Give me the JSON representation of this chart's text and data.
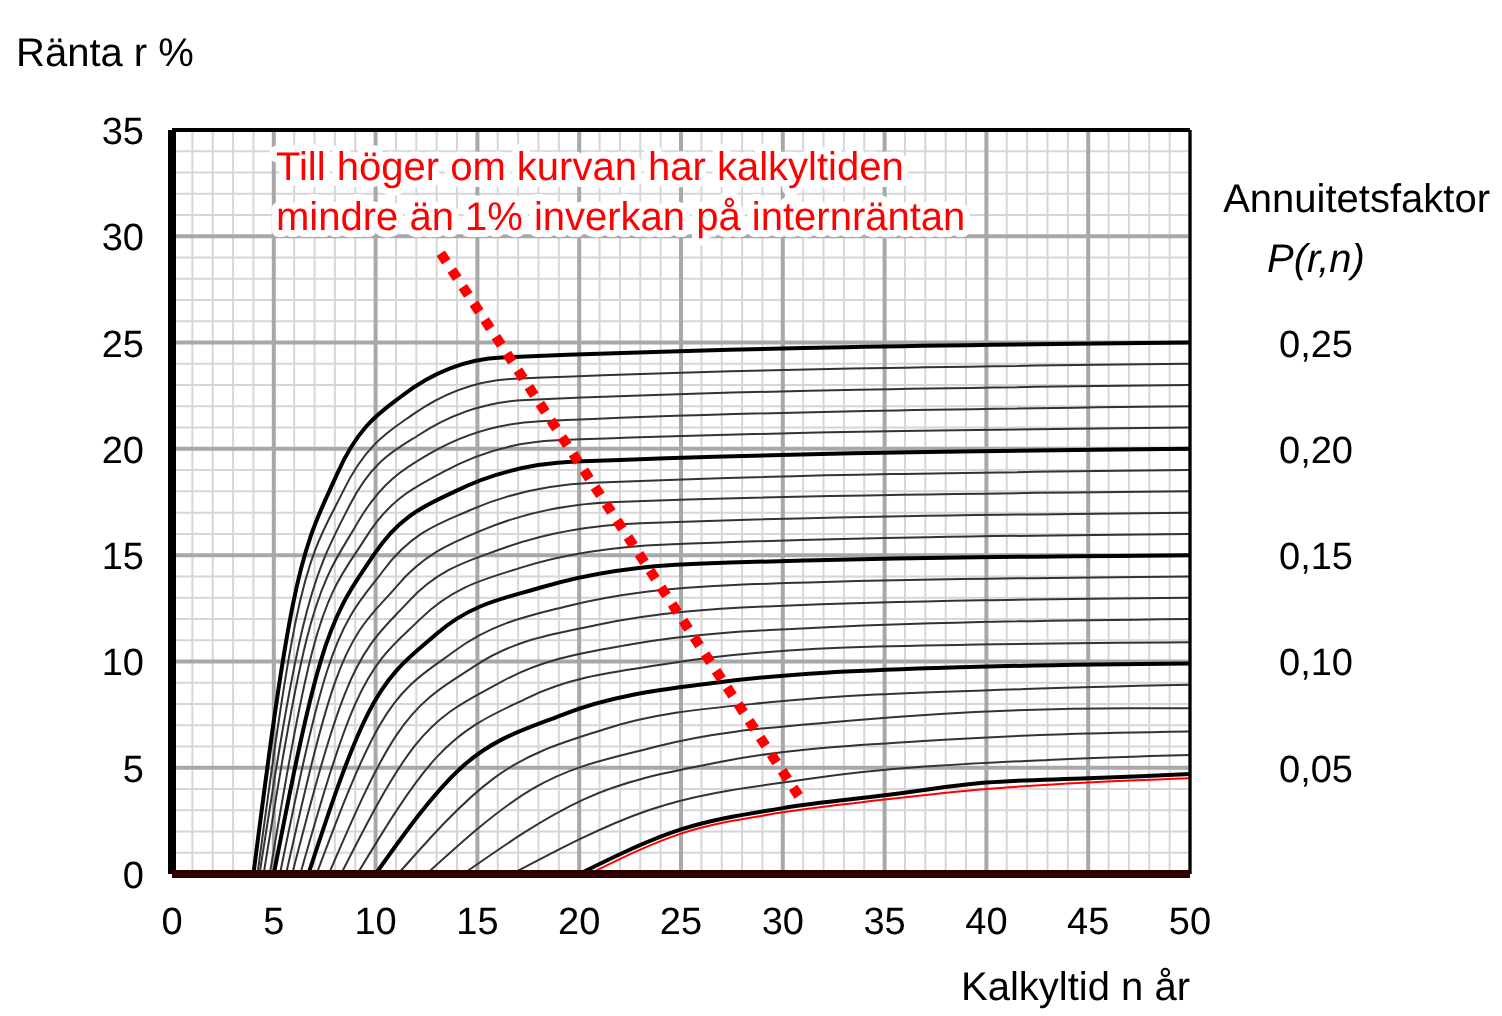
{
  "chart_data": {
    "type": "line",
    "ylabel": "Ränta r %",
    "xlabel": "Kalkyltid n år",
    "y2label": "Annuitetsfaktor P(r,n)",
    "xlim": [
      0,
      50
    ],
    "xticks": [
      0,
      5,
      10,
      15,
      20,
      25,
      30,
      35,
      40,
      45,
      50
    ],
    "ylim": [
      0,
      35
    ],
    "yticks": [
      0,
      5,
      10,
      15,
      20,
      25,
      30,
      35
    ],
    "y2lim": [
      0,
      0.35
    ],
    "y2ticks": [
      {
        "value": 0.05,
        "label": "0,05"
      },
      {
        "value": 0.1,
        "label": "0,10"
      },
      {
        "value": 0.15,
        "label": "0,15"
      },
      {
        "value": 0.2,
        "label": "0,20"
      },
      {
        "value": 0.25,
        "label": "0,25"
      }
    ],
    "grid": true,
    "marker": "none",
    "line_style": "solid",
    "annotations": [
      "Till höger om kurvan har kalkyltiden",
      "mindre än 1% inverkan på internräntan"
    ],
    "series": [
      {
        "color": "#000000",
        "x": [
          4,
          5.9,
          8.1,
          11.3,
          16.2,
          50
        ],
        "values": [
          0,
          12.5,
          18.8,
          22.5,
          24.3,
          25
        ]
      },
      {
        "color": "#333333",
        "x": [
          4.2,
          6.1,
          8.4,
          11.8,
          16.8,
          50
        ],
        "values": [
          0,
          12,
          18,
          21.6,
          23.3,
          24
        ]
      },
      {
        "color": "#333333",
        "x": [
          4.3,
          6.4,
          8.7,
          12.2,
          17.4,
          50
        ],
        "values": [
          0,
          11.5,
          17.3,
          20.7,
          22.3,
          23
        ]
      },
      {
        "color": "#333333",
        "x": [
          4.5,
          6.6,
          9.1,
          12.7,
          18.1,
          50
        ],
        "values": [
          0,
          11,
          16.5,
          19.8,
          21.3,
          22
        ]
      },
      {
        "color": "#333333",
        "x": [
          4.8,
          6.9,
          9.5,
          13.3,
          18.9,
          50
        ],
        "values": [
          0,
          10.5,
          15.8,
          18.9,
          20.4,
          21
        ]
      },
      {
        "color": "#000000",
        "x": [
          5,
          7.3,
          9.9,
          13.9,
          19.8,
          50
        ],
        "values": [
          0,
          10,
          15,
          18,
          19.4,
          20
        ]
      },
      {
        "color": "#333333",
        "x": [
          5.3,
          7.6,
          10.4,
          14.6,
          20.7,
          50
        ],
        "values": [
          0,
          9.5,
          14.3,
          17.1,
          18.4,
          19
        ]
      },
      {
        "color": "#333333",
        "x": [
          5.6,
          8,
          11,
          15.3,
          21.8,
          50
        ],
        "values": [
          0,
          9,
          13.5,
          16.2,
          17.5,
          18
        ]
      },
      {
        "color": "#333333",
        "x": [
          5.9,
          8.5,
          11.6,
          16.2,
          23,
          50
        ],
        "values": [
          0,
          8.5,
          12.8,
          15.3,
          16.5,
          17
        ]
      },
      {
        "color": "#333333",
        "x": [
          6.3,
          9,
          12.2,
          17.1,
          24.3,
          50
        ],
        "values": [
          0,
          8,
          12,
          14.4,
          15.5,
          16
        ]
      },
      {
        "color": "#000000",
        "x": [
          6.7,
          9.6,
          13,
          18.2,
          25.8,
          50
        ],
        "values": [
          0,
          7.5,
          11.3,
          13.5,
          14.6,
          15
        ]
      },
      {
        "color": "#333333",
        "x": [
          7.1,
          10.2,
          13.9,
          19.4,
          27.6,
          50
        ],
        "values": [
          0,
          7,
          10.5,
          12.6,
          13.6,
          14
        ]
      },
      {
        "color": "#333333",
        "x": [
          7.7,
          11,
          14.9,
          20.8,
          29.5,
          50
        ],
        "values": [
          0,
          6.5,
          9.8,
          11.7,
          12.6,
          13
        ]
      },
      {
        "color": "#333333",
        "x": [
          8.3,
          11.9,
          16.1,
          22.5,
          31.9,
          50
        ],
        "values": [
          0,
          6,
          9,
          10.8,
          11.6,
          12
        ]
      },
      {
        "color": "#333333",
        "x": [
          9.1,
          13,
          17.5,
          24.4,
          34.6,
          50
        ],
        "values": [
          0,
          5.5,
          8.3,
          9.9,
          10.7,
          10.9
        ]
      },
      {
        "color": "#000000",
        "x": [
          10,
          14.2,
          19.2,
          26.7,
          37.9,
          50
        ],
        "values": [
          0,
          5,
          7.5,
          9,
          9.7,
          9.9
        ]
      },
      {
        "color": "#333333",
        "x": [
          11.1,
          15.8,
          21.2,
          29.6,
          41.9,
          50
        ],
        "values": [
          0,
          4.5,
          6.8,
          8.1,
          8.7,
          8.9
        ]
      },
      {
        "color": "#333333",
        "x": [
          12.5,
          17.7,
          23.8,
          33.1,
          47,
          50
        ],
        "values": [
          0,
          4,
          6,
          7.2,
          7.8,
          7.8
        ]
      },
      {
        "color": "#333333",
        "x": [
          14.3,
          20.2,
          27.1,
          37.7,
          50
        ],
        "values": [
          0,
          3.5,
          5.3,
          6.3,
          6.7
        ]
      },
      {
        "color": "#333333",
        "x": [
          16.7,
          23.4,
          31.5,
          43.8,
          50
        ],
        "values": [
          0,
          3,
          4.5,
          5.4,
          5.6
        ]
      },
      {
        "color": "#000000",
        "x": [
          20,
          25,
          30,
          35,
          40,
          45,
          50
        ],
        "values": [
          0,
          2.1,
          3.1,
          3.7,
          4.3,
          4.5,
          4.7
        ]
      },
      {
        "color": "#ff0000",
        "x": [
          20.5,
          25,
          30,
          35,
          40,
          45,
          50
        ],
        "values": [
          0,
          1.9,
          2.9,
          3.5,
          4,
          4.3,
          4.5
        ]
      },
      {
        "color": "#ff0000",
        "line_style": "dotted",
        "x": [
          13.2,
          30.9
        ],
        "values": [
          29.2,
          3.5
        ]
      }
    ]
  }
}
